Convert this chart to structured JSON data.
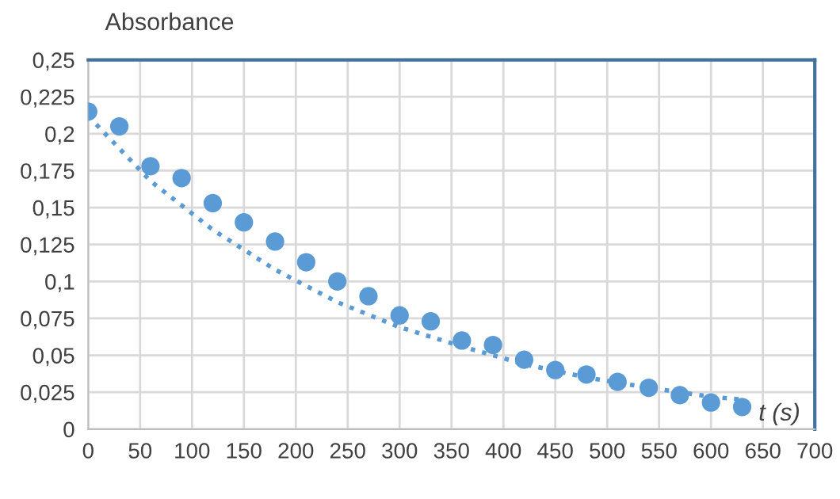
{
  "chart_data": {
    "type": "scatter",
    "xlabel": "t (s)",
    "ylabel": "Absorbance",
    "x": [
      0,
      30,
      60,
      90,
      120,
      150,
      180,
      210,
      240,
      270,
      300,
      330,
      360,
      390,
      420,
      450,
      480,
      510,
      540,
      570,
      600,
      630
    ],
    "series": [
      {
        "color": "#5b9bd5",
        "marker": "circle",
        "values": [
          0.215,
          0.205,
          0.178,
          0.17,
          0.153,
          0.14,
          0.127,
          0.113,
          0.1,
          0.09,
          0.077,
          0.073,
          0.06,
          0.057,
          0.047,
          0.04,
          0.037,
          0.032,
          0.028,
          0.023,
          0.018,
          0.015
        ]
      },
      {
        "type": "line",
        "color": "#5b9bd5",
        "line_style": "dotted",
        "marker": "none",
        "x": [
          0,
          60,
          120,
          180,
          240,
          300,
          360,
          420,
          480,
          540,
          600,
          630
        ],
        "values": [
          0.212,
          0.168,
          0.135,
          0.108,
          0.086,
          0.069,
          0.056,
          0.044,
          0.035,
          0.028,
          0.022,
          0.02
        ]
      }
    ],
    "xlim": [
      0,
      700
    ],
    "xticks": [
      0,
      50,
      100,
      150,
      200,
      250,
      300,
      350,
      400,
      450,
      500,
      550,
      600,
      650,
      700
    ],
    "ylim": [
      0,
      0.25
    ],
    "yticks": [
      0,
      {
        "value": 0.025,
        "label": "0,025"
      },
      {
        "value": 0.05,
        "label": "0,05"
      },
      {
        "value": 0.075,
        "label": "0,075"
      },
      {
        "value": 0.1,
        "label": "0,1"
      },
      {
        "value": 0.125,
        "label": "0,125"
      },
      {
        "value": 0.15,
        "label": "0,15"
      },
      {
        "value": 0.175,
        "label": "0,175"
      },
      {
        "value": 0.2,
        "label": "0,2"
      },
      {
        "value": 0.225,
        "label": "0,225"
      },
      {
        "value": 0.25,
        "label": "0,25"
      }
    ],
    "grid": true,
    "legend": false
  }
}
